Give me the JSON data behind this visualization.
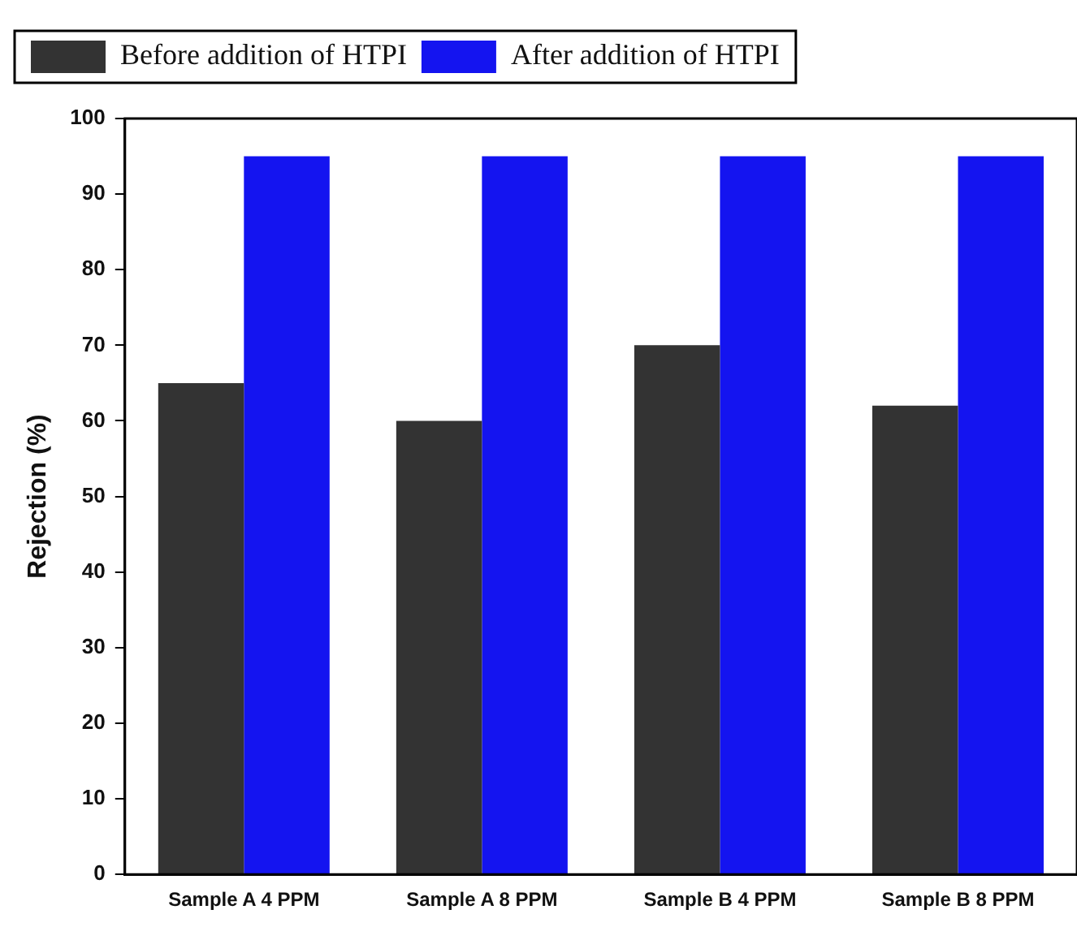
{
  "chart_data": {
    "type": "bar",
    "ylabel": "Rejection (%)",
    "categories": [
      "Sample A 4 PPM",
      "Sample A 8 PPM",
      "Sample B 4 PPM",
      "Sample B 8 PPM"
    ],
    "series": [
      {
        "name": "Before addition of HTPI",
        "color": "#333333",
        "values": [
          65,
          60,
          70,
          62
        ]
      },
      {
        "name": "After addition of HTPI",
        "color": "#1414f0",
        "values": [
          95,
          95,
          95,
          95
        ]
      }
    ],
    "ylim": [
      0,
      100
    ],
    "yticks": [
      0,
      10,
      20,
      30,
      40,
      50,
      60,
      70,
      80,
      90,
      100
    ],
    "grid": false,
    "legend": "top left"
  }
}
